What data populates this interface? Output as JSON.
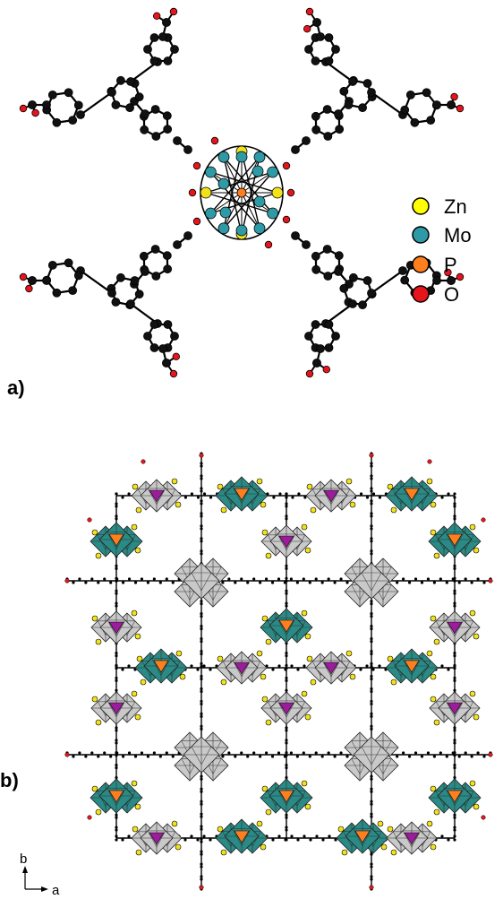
{
  "panels": {
    "a_label": "a)",
    "b_label": "b)"
  },
  "legend": [
    {
      "label": "Zn",
      "color": "#ffff00"
    },
    {
      "label": "Mo",
      "color": "#2e9aa6"
    },
    {
      "label": "P",
      "color": "#ff7f1e"
    },
    {
      "label": "O",
      "color": "#e8141c"
    }
  ],
  "axes": {
    "b": "b",
    "a": "a"
  },
  "colors": {
    "carbon": "#111111",
    "oxygen": "#e8141c",
    "zinc": "#f2e21a",
    "molybdenum": "#2e9aa6",
    "phosphorus": "#ff7f1e",
    "teal_polyhedra": "#2a8a85",
    "grey_polyhedra": "#c9c9c9",
    "purple_tetrahedra": "#9b1d9b"
  }
}
